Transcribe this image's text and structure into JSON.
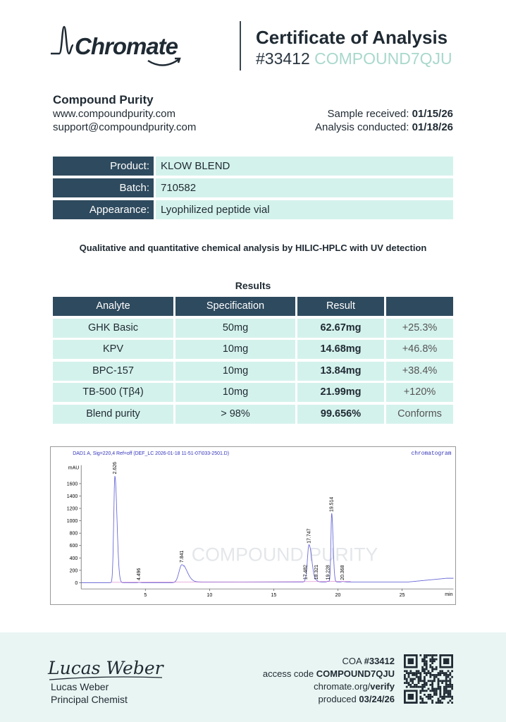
{
  "header": {
    "logo_text": "Chromate",
    "title": "Certificate of Analysis",
    "coa_number": "#33412",
    "coa_code": "COMPOUND7QJU"
  },
  "client": {
    "name": "Compound Purity",
    "website": "www.compoundpurity.com",
    "email": "support@compoundpurity.com",
    "sample_received_label": "Sample received:",
    "sample_received": "01/15/26",
    "analysis_label": "Analysis conducted:",
    "analysis_date": "01/18/26"
  },
  "info": [
    {
      "label": "Product:",
      "value": "KLOW BLEND"
    },
    {
      "label": "Batch:",
      "value": "710582"
    },
    {
      "label": "Appearance:",
      "value": "Lyophilized peptide vial"
    }
  ],
  "method": "Qualitative and quantitative chemical analysis by HILIC-HPLC with UV detection",
  "results": {
    "title": "Results",
    "headers": [
      "Analyte",
      "Specification",
      "Result",
      ""
    ],
    "rows": [
      [
        "GHK Basic",
        "50mg",
        "62.67mg",
        "+25.3%"
      ],
      [
        "KPV",
        "10mg",
        "14.68mg",
        "+46.8%"
      ],
      [
        "BPC-157",
        "10mg",
        "13.84mg",
        "+38.4%"
      ],
      [
        "TB-500 (Tβ4)",
        "10mg",
        "21.99mg",
        "+120%"
      ],
      [
        "Blend purity",
        "> 98%",
        "99.656%",
        "Conforms"
      ]
    ]
  },
  "chart_data": {
    "type": "line",
    "title": "DAD1 A, Sig=220,4 Ref=off (DEF_LC 2026-01-18 11-51-07\\033-2501.D)",
    "corner_label": "chromatogram",
    "watermark": "COMPOUND PURITY",
    "xlabel": "min",
    "ylabel": "mAU",
    "xlim": [
      0,
      29
    ],
    "ylim": [
      -100,
      1830
    ],
    "xticks": [
      5,
      10,
      15,
      20,
      25
    ],
    "yticks": [
      0,
      200,
      400,
      600,
      800,
      1000,
      1200,
      1400,
      1600
    ],
    "line_color": "#6a6ad8",
    "peaks": [
      {
        "rt": 2.626,
        "label": "2.626",
        "height": 1720
      },
      {
        "rt": 4.496,
        "label": "4.496",
        "height": 5
      },
      {
        "rt": 7.841,
        "label": "7.841",
        "height": 290
      },
      {
        "rt": 17.482,
        "label": "17.482",
        "height": 15
      },
      {
        "rt": 17.747,
        "label": "17.747",
        "height": 600
      },
      {
        "rt": 18.321,
        "label": "18.321",
        "height": 15
      },
      {
        "rt": 19.228,
        "label": "19.228",
        "height": 12
      },
      {
        "rt": 19.514,
        "label": "19.514",
        "height": 1110
      },
      {
        "rt": 20.368,
        "label": "20.368",
        "height": 8
      }
    ]
  },
  "footer": {
    "signature": "Lucas Weber",
    "signer_name": "Lucas Weber",
    "signer_role": "Principal Chemist",
    "coa_label": "COA",
    "coa_number": "#33412",
    "access_label": "access code",
    "access_code": "COMPOUND7QJU",
    "verify_domain": "chromate.org/",
    "verify_path": "verify",
    "produced_label": "produced",
    "produced_date": "03/24/26"
  }
}
